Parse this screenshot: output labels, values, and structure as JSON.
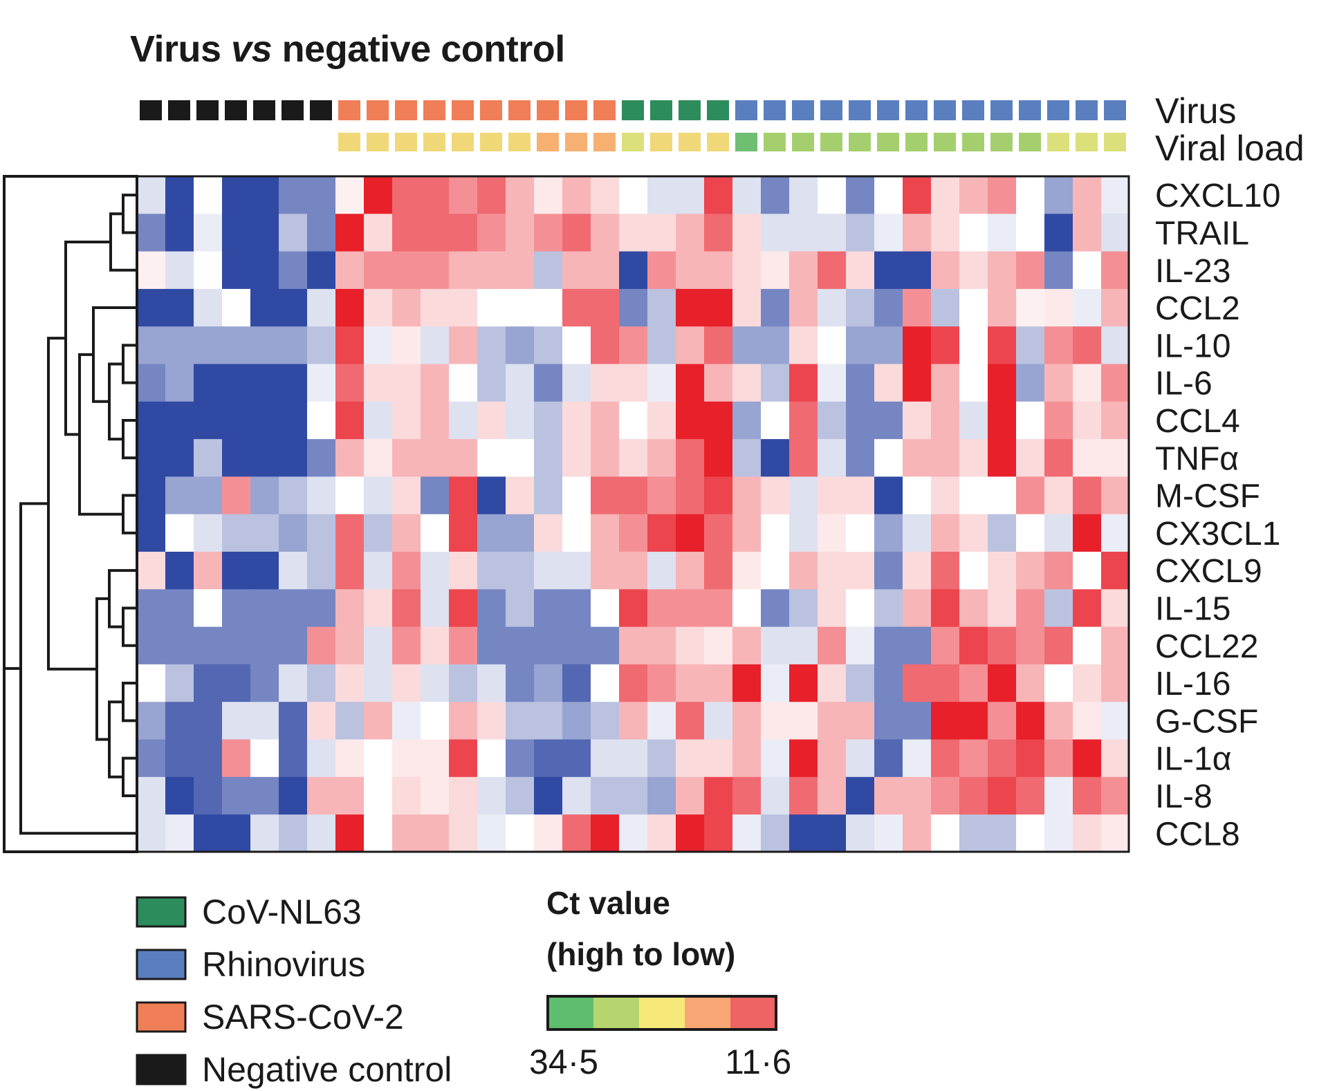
{
  "chart_data": {
    "type": "heatmap",
    "title": "Virus vs negative control",
    "title_parts": [
      "Virus ",
      "vs",
      " negative control"
    ],
    "track_labels": {
      "virus": "Virus",
      "viral_load": "Viral load"
    },
    "virus_track": [
      "NC",
      "NC",
      "NC",
      "NC",
      "NC",
      "NC",
      "NC",
      "SC2",
      "SC2",
      "SC2",
      "SC2",
      "SC2",
      "SC2",
      "SC2",
      "SC2",
      "SC2",
      "SC2",
      "NL63",
      "NL63",
      "NL63",
      "NL63",
      "RV",
      "RV",
      "RV",
      "RV",
      "RV",
      "RV",
      "RV",
      "RV",
      "RV",
      "RV",
      "RV",
      "RV",
      "RV",
      "RV"
    ],
    "viral_load_track": [
      null,
      null,
      null,
      null,
      null,
      null,
      null,
      3,
      3,
      3,
      3,
      3,
      3,
      3,
      4,
      4,
      4,
      2,
      3,
      3,
      3,
      0,
      1,
      1,
      1,
      1,
      1,
      1,
      1,
      1,
      1,
      1,
      2,
      2,
      2
    ],
    "rows": [
      "CXCL10",
      "TRAIL",
      "IL-23",
      "CCL2",
      "IL-10",
      "IL-6",
      "CCL4",
      "TNFα",
      "M-CSF",
      "CX3CL1",
      "CXCL9",
      "IL-15",
      "CCL22",
      "IL-16",
      "G-CSF",
      "IL-1α",
      "IL-8",
      "CCL8"
    ],
    "value_scale": "-3 (strong blue) to +3 (strong red)",
    "values": [
      [
        -0.5,
        -3,
        0,
        -3,
        -3,
        -2,
        -2,
        0.2,
        3,
        2,
        2,
        1.5,
        2,
        1,
        0.3,
        1,
        0.5,
        0,
        -0.5,
        -0.5,
        2.5,
        -0.5,
        -2,
        -0.5,
        0,
        -2,
        0,
        2.5,
        0.5,
        1,
        1.5,
        0,
        -1.5,
        1,
        -0.3
      ],
      [
        -2,
        -3,
        -0.3,
        -3,
        -3,
        -1,
        -2,
        3,
        0.5,
        2,
        2,
        2,
        1.5,
        1,
        1.5,
        2,
        1,
        0.5,
        0.5,
        1,
        2,
        0.5,
        -0.5,
        -0.5,
        -0.5,
        -1,
        -0.3,
        1,
        0.5,
        0,
        -0.3,
        0,
        -3,
        1,
        -0.5
      ],
      [
        0.2,
        -0.5,
        0,
        -3,
        -3,
        -2,
        -3,
        1,
        1.5,
        1.5,
        1.5,
        1,
        1,
        1,
        -1,
        1,
        1,
        -3,
        1.5,
        1,
        1,
        0.5,
        0.3,
        1,
        2,
        0.5,
        -3,
        -3,
        1,
        0.5,
        1,
        1.5,
        -2,
        0,
        1.5
      ],
      [
        -3,
        -3,
        -0.5,
        0,
        -3,
        -3,
        -0.5,
        3,
        0.5,
        1,
        0.5,
        0.5,
        0,
        0,
        0,
        2,
        2,
        -2,
        -1,
        3,
        3,
        0.5,
        -2,
        1,
        -0.5,
        -1,
        -2,
        1.5,
        -1,
        0,
        1,
        0.2,
        0.3,
        -0.3,
        1
      ],
      [
        -1.5,
        -1.5,
        -1.5,
        -1.5,
        -1.5,
        -1.5,
        -1,
        2.5,
        -0.3,
        0.3,
        -0.5,
        1,
        -1,
        -1.5,
        -1,
        0,
        2,
        1.5,
        -1,
        1,
        2,
        -1.5,
        -1.5,
        0.5,
        0,
        -1.5,
        -1.5,
        3,
        2.5,
        0,
        2.5,
        -1,
        1.5,
        2,
        -0.5
      ],
      [
        -2,
        -1.5,
        -3,
        -3,
        -3,
        -3,
        -0.3,
        2,
        0.5,
        0.5,
        1,
        0,
        -1,
        -0.5,
        -2,
        -0.5,
        0.5,
        0.5,
        -0.3,
        3,
        1,
        0.5,
        -1,
        2.5,
        -0.3,
        -2,
        0.5,
        3,
        1,
        0,
        3,
        -1.5,
        1,
        0.3,
        1.5
      ],
      [
        -3,
        -3,
        -3,
        -3,
        -3,
        -3,
        0,
        2.5,
        -0.5,
        0.5,
        1,
        -0.5,
        0.5,
        -0.5,
        -1,
        0.5,
        1,
        0,
        0.5,
        3,
        3,
        -1.5,
        0,
        2,
        -1,
        -2,
        -2,
        0.5,
        1,
        -0.5,
        3,
        0,
        1.5,
        0.5,
        1
      ],
      [
        -3,
        -3,
        -1,
        -3,
        -3,
        -3,
        -2,
        1,
        0.3,
        1,
        1,
        1,
        0,
        0,
        -1,
        0.5,
        1,
        0.5,
        1,
        2,
        3,
        -1,
        -3,
        2,
        -0.5,
        -2,
        0,
        1,
        1,
        0.5,
        3,
        0.5,
        2,
        0.3,
        0.3
      ],
      [
        -3,
        -1.5,
        -1.5,
        1.5,
        -1.5,
        -1,
        -0.5,
        0,
        -0.5,
        0.5,
        -2,
        2.5,
        -3,
        0.5,
        -1,
        0,
        2,
        2,
        1.5,
        2,
        2.5,
        1,
        0.5,
        -0.5,
        0.5,
        0.5,
        -3,
        0,
        0.5,
        0,
        0,
        1.5,
        0.5,
        2,
        1
      ],
      [
        -3,
        0,
        -0.5,
        -1,
        -1,
        -1.5,
        -1,
        2,
        -1,
        1,
        0,
        2.5,
        -1.5,
        -1.5,
        0.5,
        0,
        1,
        1.5,
        2.5,
        3,
        2,
        1,
        0,
        -0.5,
        0.3,
        0,
        -1.5,
        -0.5,
        1,
        0.5,
        -1,
        0,
        -0.5,
        3,
        -0.3
      ],
      [
        0.5,
        -3,
        1,
        -3,
        -3,
        -0.5,
        -1,
        2,
        -0.5,
        1.5,
        -0.5,
        0.5,
        -1,
        -1,
        -0.5,
        -0.5,
        1,
        1,
        -0.5,
        1,
        2,
        0.3,
        0,
        1,
        0.5,
        0.5,
        -2,
        0.5,
        2,
        0,
        0.5,
        1,
        1.5,
        0,
        2.5
      ],
      [
        -2,
        -2,
        0,
        -2,
        -2,
        -2,
        -2,
        1,
        0.5,
        2,
        -0.5,
        2.5,
        -2,
        -1,
        -2,
        -2,
        0,
        2.5,
        1.5,
        1.5,
        1.5,
        0,
        -2,
        -1,
        0.5,
        0,
        -1,
        1,
        2.5,
        1,
        0.5,
        1.5,
        -1,
        2.5,
        0.5
      ],
      [
        -2,
        -2,
        -2,
        -2,
        -2,
        -2,
        1.5,
        1,
        -0.5,
        1.5,
        0.5,
        1.5,
        -2,
        -2,
        -2,
        -2,
        -2,
        1,
        1,
        0.5,
        0.3,
        1,
        -0.5,
        -0.5,
        1.5,
        -0.3,
        -2,
        -2,
        1.5,
        2.5,
        2,
        1.5,
        2,
        0,
        1
      ],
      [
        0,
        -1,
        -2.5,
        -2.5,
        -2,
        -0.5,
        -1,
        0.5,
        -0.5,
        0.5,
        -0.5,
        -1,
        -0.5,
        -2,
        -1.5,
        -2.5,
        0,
        2,
        1.5,
        1,
        1,
        3,
        -0.3,
        3,
        0.5,
        -1,
        -2,
        2,
        2,
        1.5,
        3,
        1,
        0,
        0.5,
        1
      ],
      [
        -1.5,
        -2.5,
        -2.5,
        -0.5,
        -0.5,
        -2.5,
        0.5,
        -1,
        1,
        -0.3,
        0,
        1,
        0.5,
        -1,
        -1,
        -1.5,
        -1,
        1,
        -0.3,
        2,
        -0.5,
        1,
        0.3,
        0.3,
        1,
        1,
        -2,
        -2,
        3,
        3,
        1.5,
        3,
        1,
        0.3,
        -0.3
      ],
      [
        -2,
        -2.5,
        -2.5,
        1.5,
        0,
        -2.5,
        -0.5,
        0.3,
        0,
        0.3,
        0.3,
        2.5,
        0,
        -2,
        -2.5,
        -2.5,
        -0.5,
        -0.5,
        -1,
        0.5,
        0.5,
        1,
        -0.3,
        3,
        1,
        -0.5,
        -2.5,
        -0.3,
        2,
        1.5,
        2,
        2.5,
        1.5,
        3,
        0.5
      ],
      [
        -0.5,
        -3,
        -2.5,
        -2,
        -2,
        -3,
        1,
        1,
        0,
        0.5,
        0.3,
        0.5,
        -0.5,
        -1,
        -3,
        -0.5,
        -1,
        -1,
        -1.5,
        1,
        2.5,
        2,
        -0.5,
        2,
        1,
        -3,
        1,
        1,
        1.5,
        2,
        2.5,
        2,
        -0.3,
        2,
        1.5
      ],
      [
        -0.5,
        -0.3,
        -3,
        -3,
        -0.5,
        -1,
        -0.5,
        3,
        0,
        1,
        1,
        0.5,
        -0.3,
        0,
        0.3,
        2,
        3,
        -0.3,
        0.5,
        3,
        2.5,
        -0.3,
        -1,
        -3,
        -3,
        -0.5,
        -0.3,
        1,
        0,
        -1,
        -1,
        0,
        -0.3,
        0.5,
        0.3
      ]
    ],
    "legend": [
      {
        "label": "CoV-NL63",
        "color": "#2d8c5c"
      },
      {
        "label": "Rhinovirus",
        "color": "#5a7fbf"
      },
      {
        "label": "SARS-CoV-2",
        "color": "#f07e57"
      },
      {
        "label": "Negative control",
        "color": "#1a1a1a"
      }
    ],
    "color_scale": {
      "title_line1": "Ct value",
      "title_line2": "(high to low)",
      "colors": [
        "#5ebd6f",
        "#b6d56f",
        "#f6e979",
        "#f8a774",
        "#ee6364"
      ],
      "min_label": "34·5",
      "max_label": "11·6"
    },
    "virus_colors": {
      "NC": "#1a1a1a",
      "SC2": "#f07e57",
      "NL63": "#2d8c5c",
      "RV": "#5a7fbf"
    },
    "load_colors": [
      "#6fbf73",
      "#a5cf6e",
      "#dbe07a",
      "#f0d878",
      "#f6b072"
    ],
    "heat_colors": {
      "low": "#3049a3",
      "mid": "#ffffff",
      "high": "#e8202a"
    }
  }
}
